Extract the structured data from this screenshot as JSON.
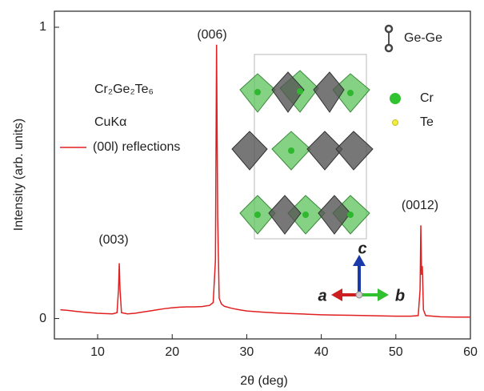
{
  "chart_data": {
    "type": "line",
    "x_label": "2θ (deg)",
    "y_label": "Intensity (arb. units)",
    "xlim": [
      4.2,
      60
    ],
    "ylim": [
      -0.07,
      1.055
    ],
    "xticks": [
      10,
      20,
      30,
      40,
      50,
      60
    ],
    "yticks": [
      0,
      1
    ],
    "x": [
      5,
      6,
      7,
      8,
      9,
      10,
      11,
      12,
      12.6,
      12.8,
      12.9,
      13.0,
      13.2,
      14,
      15,
      16,
      17,
      18,
      19,
      20,
      21,
      22,
      23,
      24,
      25,
      25.5,
      25.8,
      25.95,
      26.1,
      26.3,
      26.6,
      27,
      28,
      29,
      30,
      32,
      34,
      36,
      38,
      40,
      42,
      44,
      46,
      48,
      50,
      52,
      53,
      53.25,
      53.35,
      53.45,
      53.55,
      53.7,
      54,
      56,
      58,
      60
    ],
    "series": [
      {
        "name": "(00l) reflections",
        "color": "#e02020",
        "values": [
          0.03,
          0.028,
          0.025,
          0.022,
          0.02,
          0.018,
          0.017,
          0.016,
          0.02,
          0.1,
          0.19,
          0.1,
          0.02,
          0.016,
          0.018,
          0.022,
          0.026,
          0.03,
          0.034,
          0.037,
          0.039,
          0.04,
          0.04,
          0.041,
          0.045,
          0.055,
          0.2,
          0.94,
          0.35,
          0.07,
          0.05,
          0.042,
          0.035,
          0.03,
          0.026,
          0.022,
          0.019,
          0.017,
          0.015,
          0.013,
          0.012,
          0.011,
          0.01,
          0.009,
          0.008,
          0.008,
          0.01,
          0.1,
          0.32,
          0.15,
          0.18,
          0.03,
          0.01,
          0.006,
          0.005,
          0.005
        ]
      }
    ],
    "legend": "left",
    "annotations": [
      "(003)",
      "(006)",
      "(0012)",
      "Cr₂Ge₂Te₆",
      "CuKα"
    ],
    "inset_labels": [
      "Ge-Ge",
      "Cr",
      "Te",
      "a",
      "b",
      "c"
    ]
  }
}
